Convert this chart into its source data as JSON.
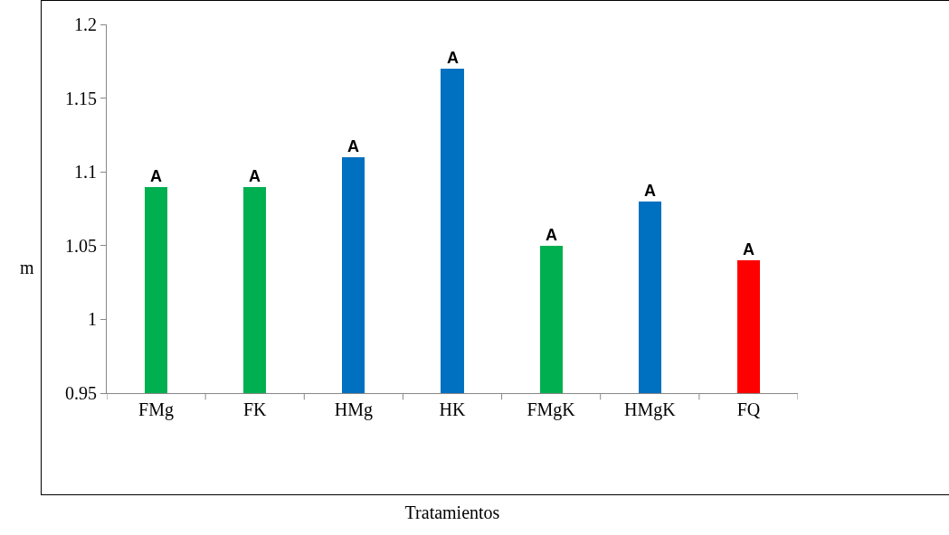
{
  "chart_data": {
    "type": "bar",
    "xlabel": "Tratamientos",
    "ylabel": "m",
    "categories": [
      "FMg",
      "FK",
      "HMg",
      "HK",
      "FMgK",
      "HMgK",
      "FQ"
    ],
    "values": [
      1.09,
      1.09,
      1.11,
      1.17,
      1.05,
      1.08,
      1.04
    ],
    "colors": [
      "#00b050",
      "#00b050",
      "#0070c0",
      "#0070c0",
      "#00b050",
      "#0070c0",
      "#ff0000"
    ],
    "ylim": [
      0.95,
      1.2
    ],
    "yticks": [
      0.95,
      1,
      1.05,
      1.1,
      1.15,
      1.2
    ],
    "grid": false,
    "legend": false,
    "annotations": [
      {
        "text": "A",
        "x": "FMg",
        "y": 1.09
      },
      {
        "text": "A",
        "x": "FK",
        "y": 1.09
      },
      {
        "text": "A",
        "x": "HMg",
        "y": 1.11
      },
      {
        "text": "A",
        "x": "HK",
        "y": 1.17
      },
      {
        "text": "A",
        "x": "FMgK",
        "y": 1.05
      },
      {
        "text": "A",
        "x": "HMgK",
        "y": 1.08
      },
      {
        "text": "A",
        "x": "FQ",
        "y": 1.04
      }
    ]
  }
}
